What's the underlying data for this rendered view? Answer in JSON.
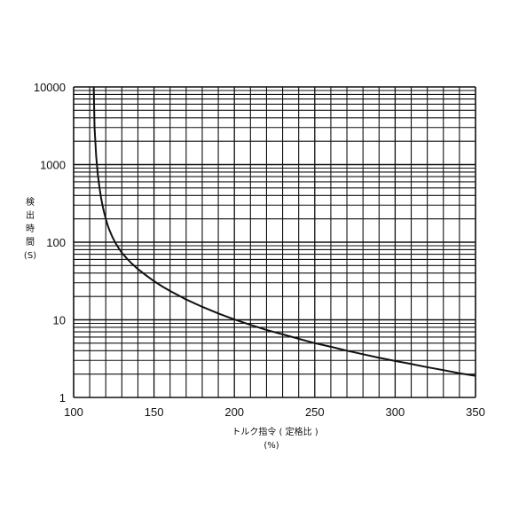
{
  "chart_data": {
    "type": "line",
    "title": "",
    "xlabel": "トルク指令 ( 定格比 )",
    "xlabel_unit": "(%)",
    "ylabel_chars": [
      "検",
      "出",
      "時",
      "間"
    ],
    "ylabel_unit": "(S)",
    "x_scale": "linear",
    "y_scale": "log",
    "xlim": [
      100,
      350
    ],
    "ylim": [
      1,
      10000
    ],
    "x_ticks": [
      100,
      150,
      200,
      250,
      300,
      350
    ],
    "x_tick_labels": [
      "100",
      "150",
      "200",
      "250",
      "300",
      "350"
    ],
    "y_ticks": [
      1,
      10,
      100,
      1000,
      10000
    ],
    "y_tick_labels": [
      "1",
      "10",
      "100",
      "1000",
      "10000"
    ],
    "x_minor_step": 10,
    "grid": true,
    "legend": "none",
    "colors": {
      "line": "#111111",
      "grid": "#111111",
      "text": "#111111"
    },
    "series": [
      {
        "x": [
          112.5,
          113,
          114,
          115,
          116,
          117,
          118,
          119,
          120,
          121,
          122,
          124,
          126,
          128,
          130,
          133,
          136,
          140,
          145,
          150,
          155,
          160,
          170,
          180,
          190,
          200,
          210,
          220,
          230,
          240,
          250,
          260,
          270,
          280,
          290,
          300,
          310,
          320,
          330,
          340,
          350
        ],
        "y": [
          10000,
          3000,
          1300,
          760,
          520,
          380,
          295,
          240,
          200,
          170,
          148,
          118,
          98,
          84,
          73,
          62,
          53.5,
          45,
          37.5,
          31.5,
          27,
          23.5,
          18.3,
          14.7,
          12.1,
          10.1,
          8.6,
          7.4,
          6.5,
          5.7,
          5.0,
          4.5,
          4.0,
          3.6,
          3.25,
          2.95,
          2.7,
          2.45,
          2.25,
          2.05,
          1.9
        ]
      }
    ]
  }
}
